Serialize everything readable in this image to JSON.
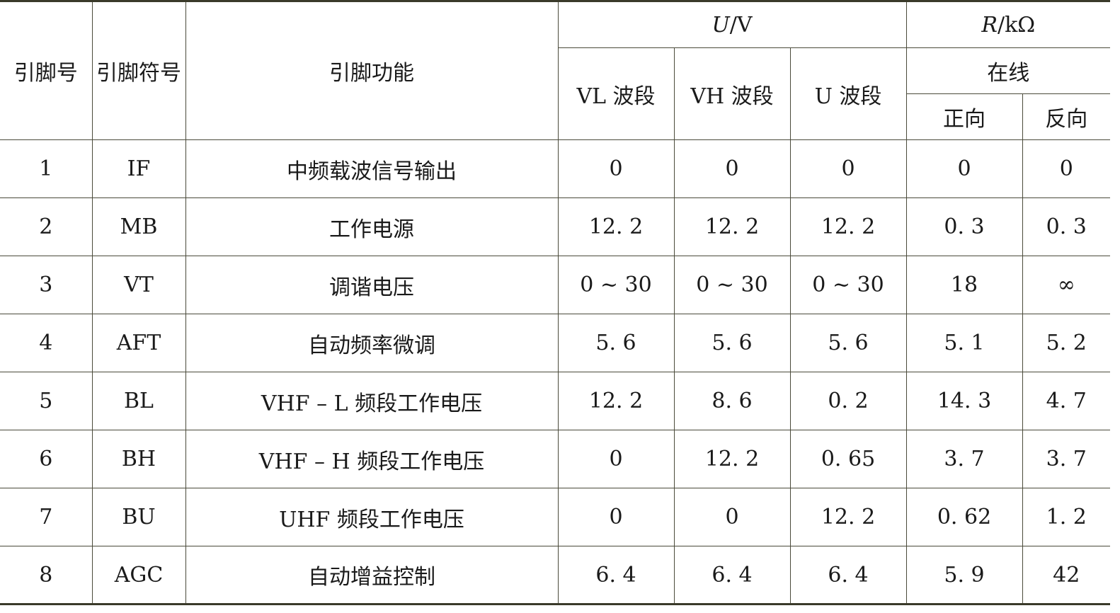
{
  "header": {
    "pin_no": "引脚号",
    "pin_symbol": "引脚符号",
    "pin_function": "引脚功能",
    "voltage_group_symbol": "U",
    "voltage_group_unit": "/V",
    "resistance_group_symbol": "R",
    "resistance_group_unit": "/kΩ",
    "band_vl": "VL 波段",
    "band_vh": "VH 波段",
    "band_u": "U 波段",
    "online": "在线",
    "forward": "正向",
    "reverse": "反向"
  },
  "rows": [
    {
      "pin": "1",
      "symbol": "IF",
      "function": "中频载波信号输出",
      "vl": "0",
      "vh": "0",
      "u": "0",
      "fwd": "0",
      "rev": "0"
    },
    {
      "pin": "2",
      "symbol": "MB",
      "function": "工作电源",
      "vl": "12. 2",
      "vh": "12. 2",
      "u": "12. 2",
      "fwd": "0. 3",
      "rev": "0. 3"
    },
    {
      "pin": "3",
      "symbol": "VT",
      "function": "调谐电压",
      "vl": "0 ~ 30",
      "vh": "0 ~ 30",
      "u": "0 ~ 30",
      "fwd": "18",
      "rev": "∞"
    },
    {
      "pin": "4",
      "symbol": "AFT",
      "function": "自动频率微调",
      "vl": "5. 6",
      "vh": "5. 6",
      "u": "5. 6",
      "fwd": "5. 1",
      "rev": "5. 2"
    },
    {
      "pin": "5",
      "symbol": "BL",
      "function": "VHF – L 频段工作电压",
      "vl": "12. 2",
      "vh": "8. 6",
      "u": "0. 2",
      "fwd": "14. 3",
      "rev": "4. 7"
    },
    {
      "pin": "6",
      "symbol": "BH",
      "function": "VHF – H 频段工作电压",
      "vl": "0",
      "vh": "12. 2",
      "u": "0. 65",
      "fwd": "3. 7",
      "rev": "3. 7"
    },
    {
      "pin": "7",
      "symbol": "BU",
      "function": "UHF 频段工作电压",
      "vl": "0",
      "vh": "0",
      "u": "12. 2",
      "fwd": "0. 62",
      "rev": "1. 2"
    },
    {
      "pin": "8",
      "symbol": "AGC",
      "function": "自动增益控制",
      "vl": "6. 4",
      "vh": "6. 4",
      "u": "6. 4",
      "fwd": "5. 9",
      "rev": "42"
    }
  ]
}
